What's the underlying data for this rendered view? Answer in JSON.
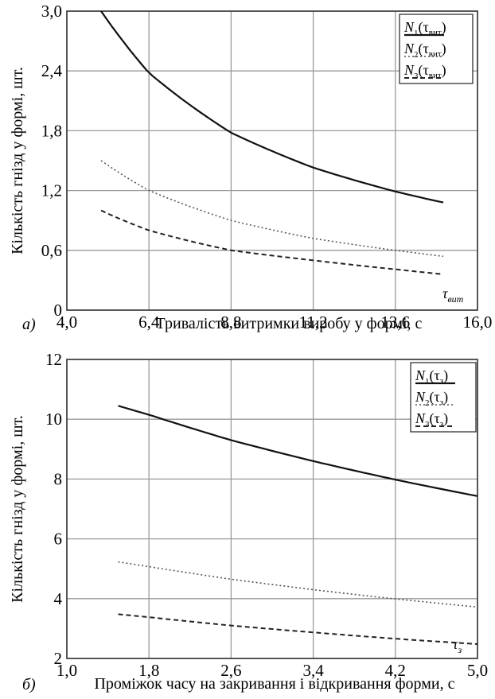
{
  "chart_data": [
    {
      "type": "line",
      "panel_letter": "а)",
      "xlabel": "Тривалість витримки виробу у формі, с",
      "ylabel": "Кількість гнізд у формі, шт.",
      "x_tick_labels": [
        "4,0",
        "6,4",
        "8,8",
        "11,2",
        "13,6",
        "16,0"
      ],
      "y_tick_labels": [
        "0",
        "0,6",
        "1,2",
        "1,8",
        "2,4",
        "3,0"
      ],
      "xlim": [
        4.0,
        16.0
      ],
      "ylim": [
        0,
        3.0
      ],
      "axis_annotation": {
        "main": "τ",
        "sub": "вит"
      },
      "legend": {
        "placement": "top-right",
        "entries": [
          {
            "main": "N",
            "index": "1",
            "arg": "τ",
            "arg_sub": "вит"
          },
          {
            "main": "N",
            "index": "2",
            "arg": "τ",
            "arg_sub": "вит"
          },
          {
            "main": "N",
            "index": "3",
            "arg": "τ",
            "arg_sub": "вит"
          }
        ]
      },
      "series": [
        {
          "style": "solid",
          "x": [
            5.0,
            6.4,
            8.8,
            11.2,
            13.6,
            15.0
          ],
          "y": [
            3.0,
            2.38,
            1.78,
            1.43,
            1.19,
            1.08
          ]
        },
        {
          "style": "dotted",
          "x": [
            5.0,
            6.4,
            8.8,
            11.2,
            13.6,
            15.0
          ],
          "y": [
            1.5,
            1.2,
            0.9,
            0.72,
            0.6,
            0.54
          ]
        },
        {
          "style": "dashed",
          "x": [
            5.0,
            6.4,
            8.8,
            11.2,
            13.6,
            15.0
          ],
          "y": [
            1.0,
            0.8,
            0.6,
            0.5,
            0.41,
            0.36
          ]
        }
      ]
    },
    {
      "type": "line",
      "panel_letter": "б)",
      "xlabel": "Проміжок часу на закривання і відкривання форми, с",
      "ylabel": "Кількість гнізд у формі, шт.",
      "x_tick_labels": [
        "1,0",
        "1,8",
        "2,6",
        "3,4",
        "4,2",
        "5,0"
      ],
      "y_tick_labels": [
        "2",
        "4",
        "6",
        "8",
        "10",
        "12"
      ],
      "xlim": [
        1.0,
        5.0
      ],
      "ylim": [
        2,
        12
      ],
      "axis_annotation": {
        "main": "τ",
        "sub": "з"
      },
      "legend": {
        "placement": "top-right",
        "entries": [
          {
            "main": "N",
            "index": "1",
            "arg": "τ",
            "arg_sub": "з"
          },
          {
            "main": "N",
            "index": "2",
            "arg": "τ",
            "arg_sub": "з"
          },
          {
            "main": "N",
            "index": "3",
            "arg": "τ",
            "arg_sub": "з"
          }
        ]
      },
      "series": [
        {
          "style": "solid",
          "x": [
            1.5,
            1.8,
            2.6,
            3.4,
            4.2,
            5.0
          ],
          "y": [
            10.45,
            10.15,
            9.3,
            8.6,
            7.98,
            7.43
          ]
        },
        {
          "style": "dotted",
          "x": [
            1.5,
            1.8,
            2.6,
            3.4,
            4.2,
            5.0
          ],
          "y": [
            5.23,
            5.07,
            4.65,
            4.3,
            3.99,
            3.72
          ]
        },
        {
          "style": "dashed",
          "x": [
            1.5,
            1.8,
            2.6,
            3.4,
            4.2,
            5.0
          ],
          "y": [
            3.48,
            3.38,
            3.1,
            2.87,
            2.66,
            2.48
          ]
        }
      ]
    }
  ]
}
